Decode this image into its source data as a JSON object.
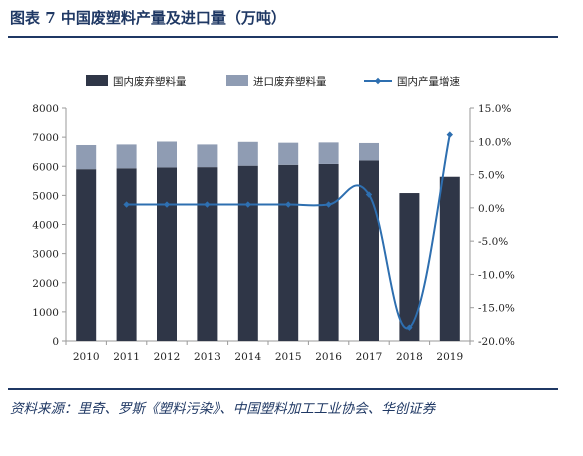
{
  "title": "图表 7   中国废塑料产量及进口量（万吨）",
  "source": "资料来源：里奇、罗斯《塑料污染》、中国塑料加工工业协会、华创证券",
  "colors": {
    "domestic": "#2f3647",
    "import": "#8f9cb3",
    "growth": "#2e6fb0",
    "title": "#1f3864"
  },
  "chart_data": {
    "type": "bar",
    "stacked": true,
    "categories": [
      "2010",
      "2011",
      "2012",
      "2013",
      "2014",
      "2015",
      "2016",
      "2017",
      "2018",
      "2019"
    ],
    "series": [
      {
        "name": "国内废弃塑料量",
        "values": [
          5900,
          5930,
          5960,
          5970,
          6020,
          6050,
          6080,
          6200,
          5080,
          5640
        ]
      },
      {
        "name": "进口废弃塑料量",
        "values": [
          830,
          820,
          890,
          780,
          820,
          760,
          740,
          600,
          0,
          0
        ]
      },
      {
        "name": "国内产量增速",
        "axis": "right",
        "type": "line",
        "values": [
          null,
          0.5,
          0.5,
          0.5,
          0.5,
          0.5,
          0.5,
          2.0,
          -18.0,
          11.0
        ]
      }
    ],
    "y_left": {
      "min": 0,
      "max": 8000,
      "ticks": [
        "0",
        "1000",
        "2000",
        "3000",
        "4000",
        "5000",
        "6000",
        "7000",
        "8000"
      ]
    },
    "y_right": {
      "min": -20,
      "max": 15,
      "ticks": [
        "-20.0%",
        "-15.0%",
        "-10.0%",
        "-5.0%",
        "0.0%",
        "5.0%",
        "10.0%",
        "15.0%"
      ]
    },
    "legend_position": "top"
  }
}
